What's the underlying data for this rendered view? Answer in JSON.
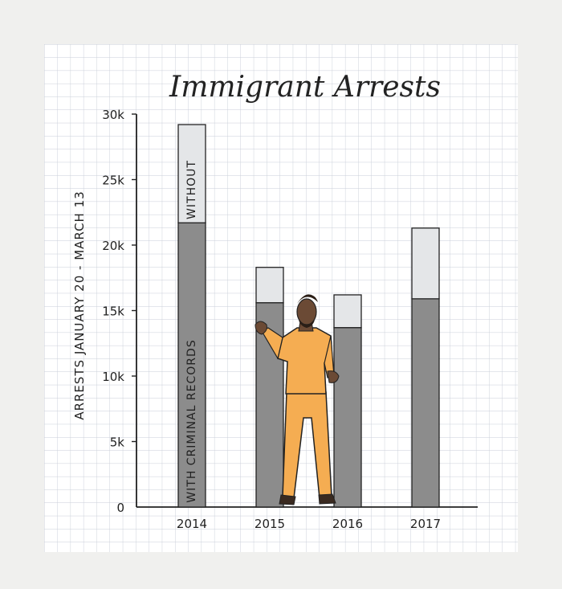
{
  "chart_data": {
    "type": "bar",
    "title": "Immigrant Arrests",
    "ylabel": "ARRESTS JANUARY 20 - MARCH 13",
    "xlabel": "",
    "categories": [
      "2014",
      "2015",
      "2016",
      "2017"
    ],
    "series": [
      {
        "name": "WITH CRIMINAL RECORDS",
        "values": [
          21700,
          15600,
          13700,
          15900
        ]
      },
      {
        "name": "WITHOUT",
        "values": [
          7500,
          2700,
          2500,
          5400
        ]
      }
    ],
    "ylim": [
      0,
      30000
    ],
    "yticks": [
      {
        "value": 0,
        "label": "0"
      },
      {
        "value": 5000,
        "label": "5k"
      },
      {
        "value": 10000,
        "label": "10k"
      },
      {
        "value": 15000,
        "label": "15k"
      },
      {
        "value": 20000,
        "label": "20k"
      },
      {
        "value": 25000,
        "label": "25k"
      },
      {
        "value": 30000,
        "label": "30k"
      }
    ],
    "grid": true,
    "legend": "inside-bar",
    "stacked": true
  },
  "colors": {
    "paper": "#ffffff",
    "grid": "#c9ced8",
    "with_records": "#8c8c8c",
    "without": "#e4e6e8",
    "ink": "#222222",
    "figure_clothes": "#f5ad52",
    "figure_skin": "#6b4a35"
  }
}
